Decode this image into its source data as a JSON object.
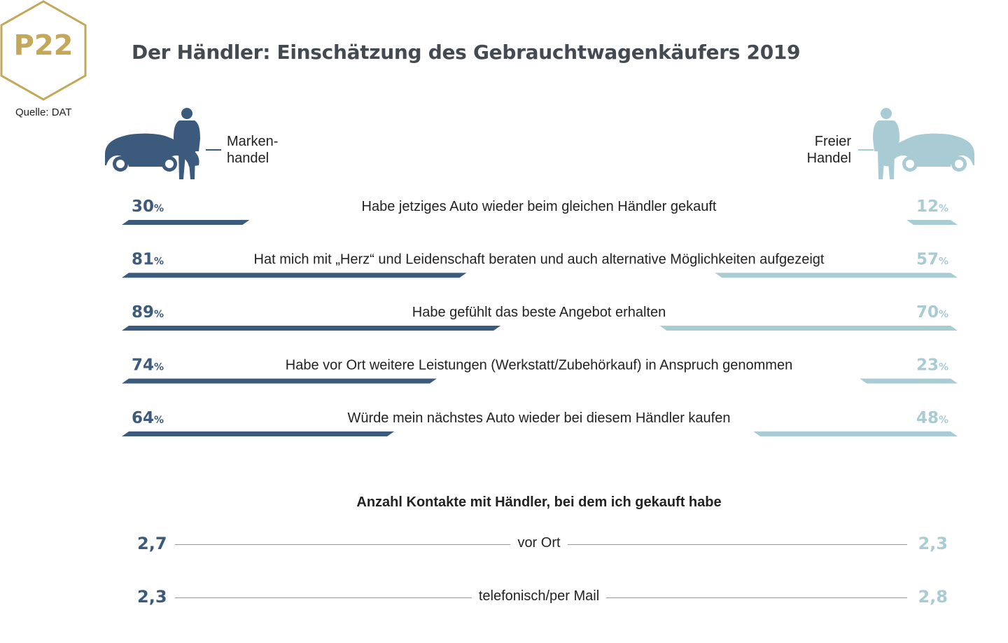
{
  "badge": {
    "label": "P22"
  },
  "source": "Quelle: DAT",
  "title": "Der Händler: Einschätzung des Gebrauchtwagenkäufers 2019",
  "legend": {
    "left": {
      "label": "Marken-\nhandel",
      "color": "#3b5a7c"
    },
    "right": {
      "label": "Freier\nHandel",
      "color": "#a9cbd3"
    }
  },
  "icons": {
    "left": "car-with-person-icon",
    "right": "car-with-person-icon"
  },
  "chart_data": {
    "type": "bar",
    "title": "Der Händler: Einschätzung des Gebrauchtwagenkäufers 2019",
    "categories": [
      "Habe jetziges Auto wieder beim gleichen Händler gekauft",
      "Hat mich mit „Herz“ und Leidenschaft beraten und auch alternative Möglichkeiten aufgezeigt",
      "Habe gefühlt das beste Angebot erhalten",
      "Habe vor Ort weitere Leistungen (Werkstatt/Zubehörkauf) in Anspruch genommen",
      "Würde mein nächstes Auto wieder bei diesem Händler kaufen"
    ],
    "series": [
      {
        "name": "Markenhandel",
        "values": [
          30,
          81,
          89,
          74,
          64
        ],
        "labels": [
          "30",
          "81",
          "89",
          "74",
          "64"
        ]
      },
      {
        "name": "Freier Handel",
        "values": [
          12,
          57,
          70,
          23,
          48
        ],
        "labels": [
          "12",
          "57",
          "70",
          "23",
          "48"
        ]
      }
    ],
    "unit": "%",
    "ylim": [
      0,
      100
    ],
    "colors": {
      "Markenhandel": "#3b5a7c",
      "Freier Handel": "#a9cbd3"
    }
  },
  "contacts": {
    "title": "Anzahl Kontakte mit Händler, bei dem ich gekauft habe",
    "rows": [
      {
        "label": "vor Ort",
        "left": "2,7",
        "right": "2,3"
      },
      {
        "label": "telefonisch/per Mail",
        "left": "2,3",
        "right": "2,8"
      }
    ]
  }
}
